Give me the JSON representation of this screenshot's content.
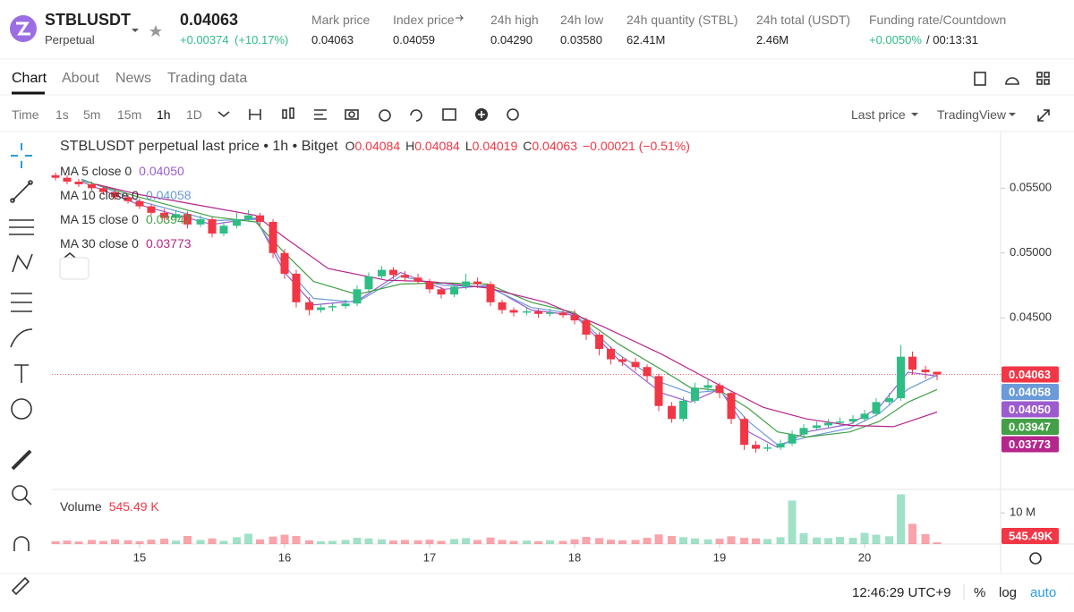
{
  "header": {
    "symbol": "STBLUSDT",
    "contract": "Perpetual",
    "price": "0.04063",
    "change": "+0.00374",
    "change_pct": "(+10.17%)",
    "stats": [
      {
        "label": "Mark price",
        "value": "0.04063"
      },
      {
        "label": "Index price",
        "value": "0.04059"
      },
      {
        "label": "24h high",
        "value": "0.04290"
      },
      {
        "label": "24h low",
        "value": "0.03580"
      },
      {
        "label": "24h quantity (STBL)",
        "value": "62.41M"
      },
      {
        "label": "24h total (USDT)",
        "value": "2.46M"
      }
    ],
    "funding": {
      "label": "Funding rate/Countdown",
      "rate": "+0.0050%",
      "countdown": "/ 00:13:31"
    }
  },
  "tabs": [
    "Chart",
    "About",
    "News",
    "Trading data"
  ],
  "toolbar": {
    "intervals": [
      "Time",
      "1s",
      "5m",
      "15m",
      "1h",
      "1D"
    ],
    "price_type": "Last price",
    "view": "TradingView"
  },
  "chart_data": {
    "type": "candlestick",
    "title": "STBLUSDT perpetual last price • 1h • Bitget",
    "ohlc_keys": [
      "O",
      "H",
      "L",
      "C"
    ],
    "change_label": "−0.00021 (−0.51%)",
    "up_color": "#2ebd85",
    "down_color": "#f23645",
    "x": [
      14.42,
      14.5,
      14.58,
      14.67,
      14.75,
      14.83,
      14.92,
      15,
      15.08,
      15.17,
      15.25,
      15.33,
      15.42,
      15.5,
      15.58,
      15.67,
      15.75,
      15.83,
      15.92,
      16,
      16.08,
      16.17,
      16.25,
      16.33,
      16.42,
      16.5,
      16.58,
      16.67,
      16.75,
      16.83,
      16.92,
      17,
      17.08,
      17.17,
      17.25,
      17.33,
      17.42,
      17.5,
      17.58,
      17.67,
      17.75,
      17.83,
      17.92,
      18,
      18.08,
      18.17,
      18.25,
      18.33,
      18.42,
      18.5,
      18.58,
      18.67,
      18.75,
      18.83,
      18.92,
      19,
      19.08,
      19.17,
      19.25,
      19.33,
      19.42,
      19.5,
      19.58,
      19.67,
      19.75,
      19.83,
      19.92,
      20,
      20.08,
      20.17,
      20.25,
      20.33,
      20.42,
      20.5
    ],
    "open": [
      0.056,
      0.0558,
      0.0555,
      0.0553,
      0.055,
      0.0547,
      0.0543,
      0.054,
      0.0536,
      0.0531,
      0.0527,
      0.053,
      0.0522,
      0.0526,
      0.0515,
      0.0521,
      0.0526,
      0.0529,
      0.0524,
      0.05,
      0.0484,
      0.0462,
      0.0456,
      0.0458,
      0.0459,
      0.0461,
      0.0472,
      0.0482,
      0.0487,
      0.0483,
      0.0481,
      0.0478,
      0.0472,
      0.0468,
      0.0474,
      0.0478,
      0.0476,
      0.0462,
      0.0456,
      0.0454,
      0.0455,
      0.0453,
      0.0454,
      0.0452,
      0.0448,
      0.0437,
      0.0426,
      0.0418,
      0.0416,
      0.0412,
      0.0405,
      0.0382,
      0.0372,
      0.0386,
      0.0396,
      0.0398,
      0.0392,
      0.0372,
      0.0352,
      0.0349,
      0.035,
      0.0353,
      0.036,
      0.0365,
      0.0367,
      0.0369,
      0.037,
      0.0372,
      0.0376,
      0.0385,
      0.0388,
      0.042,
      0.041,
      0.04084
    ],
    "high": [
      0.0562,
      0.056,
      0.0557,
      0.0555,
      0.0552,
      0.0549,
      0.0545,
      0.0542,
      0.0538,
      0.0534,
      0.0533,
      0.0532,
      0.0529,
      0.0528,
      0.0524,
      0.0531,
      0.0533,
      0.0531,
      0.0526,
      0.0503,
      0.0487,
      0.0466,
      0.0461,
      0.0462,
      0.0464,
      0.0475,
      0.0485,
      0.049,
      0.0489,
      0.0486,
      0.0484,
      0.048,
      0.0474,
      0.0477,
      0.0484,
      0.0481,
      0.0478,
      0.0464,
      0.0458,
      0.0458,
      0.0457,
      0.0457,
      0.0456,
      0.0456,
      0.045,
      0.0439,
      0.0428,
      0.042,
      0.0419,
      0.0414,
      0.0407,
      0.0385,
      0.0389,
      0.04,
      0.0403,
      0.04,
      0.0394,
      0.0374,
      0.0355,
      0.0353,
      0.0356,
      0.0363,
      0.0368,
      0.037,
      0.0372,
      0.0373,
      0.0375,
      0.0379,
      0.0388,
      0.0392,
      0.0429,
      0.0424,
      0.0413,
      0.04084
    ],
    "low": [
      0.0556,
      0.0553,
      0.0551,
      0.0548,
      0.0545,
      0.0541,
      0.0538,
      0.0534,
      0.0529,
      0.0524,
      0.0525,
      0.0519,
      0.052,
      0.0512,
      0.0513,
      0.0519,
      0.0524,
      0.0521,
      0.0496,
      0.048,
      0.0458,
      0.0452,
      0.0454,
      0.0455,
      0.0457,
      0.0459,
      0.047,
      0.048,
      0.048,
      0.0478,
      0.0476,
      0.0469,
      0.0465,
      0.0466,
      0.0472,
      0.0473,
      0.0459,
      0.0453,
      0.0451,
      0.0452,
      0.045,
      0.0451,
      0.045,
      0.0445,
      0.0433,
      0.0421,
      0.0414,
      0.0413,
      0.0409,
      0.0401,
      0.0378,
      0.0369,
      0.037,
      0.0384,
      0.0393,
      0.0388,
      0.0368,
      0.0348,
      0.0346,
      0.0347,
      0.0348,
      0.0351,
      0.0358,
      0.0363,
      0.0365,
      0.0367,
      0.0368,
      0.037,
      0.0374,
      0.0383,
      0.0386,
      0.0406,
      0.0403,
      0.04019
    ],
    "close": [
      0.0558,
      0.0555,
      0.0553,
      0.055,
      0.0547,
      0.0543,
      0.054,
      0.0536,
      0.0531,
      0.0527,
      0.053,
      0.0522,
      0.0526,
      0.0515,
      0.0521,
      0.0526,
      0.0529,
      0.0524,
      0.05,
      0.0484,
      0.0462,
      0.0456,
      0.0458,
      0.0459,
      0.0461,
      0.0472,
      0.0482,
      0.0487,
      0.0483,
      0.0481,
      0.0478,
      0.0472,
      0.0468,
      0.0474,
      0.0478,
      0.0476,
      0.0462,
      0.0456,
      0.0454,
      0.0455,
      0.0453,
      0.0454,
      0.0452,
      0.0448,
      0.0437,
      0.0426,
      0.0418,
      0.0416,
      0.0412,
      0.0405,
      0.0382,
      0.0372,
      0.0386,
      0.0396,
      0.0398,
      0.0392,
      0.0372,
      0.0352,
      0.0349,
      0.035,
      0.0353,
      0.036,
      0.0365,
      0.0367,
      0.0369,
      0.037,
      0.0372,
      0.0376,
      0.0385,
      0.0388,
      0.042,
      0.041,
      0.0408,
      0.04063
    ],
    "last_label": "0.04063",
    "series": [
      {
        "name": "MA 5 close 0",
        "color": "#9c5ccf",
        "last_label": "0.04050",
        "x": [
          14.6,
          15,
          15.5,
          15.8,
          16,
          16.2,
          16.5,
          16.8,
          17.1,
          17.4,
          17.7,
          18,
          18.3,
          18.6,
          18.8,
          19,
          19.2,
          19.4,
          19.6,
          19.9,
          20.1,
          20.3,
          20.5
        ],
        "values": [
          0.0555,
          0.0537,
          0.0522,
          0.0527,
          0.0485,
          0.046,
          0.0463,
          0.0485,
          0.0472,
          0.0475,
          0.0456,
          0.0452,
          0.0418,
          0.0392,
          0.0385,
          0.0395,
          0.0362,
          0.035,
          0.0362,
          0.0368,
          0.0381,
          0.0408,
          0.0405
        ]
      },
      {
        "name": "MA 10 close 0",
        "color": "#6a9bd8",
        "last_label": "0.04058",
        "x": [
          14.6,
          15,
          15.5,
          15.8,
          16,
          16.2,
          16.5,
          16.8,
          17.1,
          17.4,
          17.7,
          18,
          18.3,
          18.6,
          18.8,
          19,
          19.2,
          19.4,
          19.6,
          19.9,
          20.1,
          20.3,
          20.5
        ],
        "values": [
          0.0557,
          0.054,
          0.0525,
          0.0526,
          0.049,
          0.0465,
          0.0462,
          0.0482,
          0.0475,
          0.0474,
          0.0458,
          0.0453,
          0.0422,
          0.04,
          0.0392,
          0.0394,
          0.037,
          0.0352,
          0.0358,
          0.0365,
          0.0376,
          0.0395,
          0.04058
        ]
      },
      {
        "name": "MA 15 close 0",
        "color": "#43a047",
        "last_label": "0.03947",
        "x": [
          14.6,
          15,
          15.5,
          15.8,
          16,
          16.2,
          16.5,
          16.8,
          17.1,
          17.4,
          17.7,
          18,
          18.3,
          18.6,
          18.8,
          19,
          19.2,
          19.4,
          19.6,
          19.9,
          20.1,
          20.3,
          20.5
        ],
        "values": [
          0.0556,
          0.0543,
          0.0528,
          0.0524,
          0.05,
          0.0478,
          0.0468,
          0.0476,
          0.0477,
          0.0476,
          0.0462,
          0.0454,
          0.043,
          0.041,
          0.0396,
          0.0394,
          0.038,
          0.0362,
          0.0358,
          0.0362,
          0.037,
          0.0385,
          0.03947
        ]
      },
      {
        "name": "MA 30 close 0",
        "color": "#b5268c",
        "last_label": "0.03773",
        "x": [
          14.7,
          15,
          15.5,
          15.8,
          16,
          16.3,
          16.7,
          17,
          17.4,
          17.8,
          18.2,
          18.6,
          19,
          19.3,
          19.6,
          19.9,
          20.2,
          20.5
        ],
        "values": [
          0.0553,
          0.0545,
          0.0535,
          0.0529,
          0.0512,
          0.0488,
          0.0479,
          0.0478,
          0.0473,
          0.0462,
          0.0443,
          0.0422,
          0.0398,
          0.0381,
          0.0372,
          0.0367,
          0.0366,
          0.03773
        ]
      }
    ],
    "xlim": [
      14.395,
      20.938
    ],
    "xticks": [
      15,
      16,
      17,
      18,
      19,
      20
    ],
    "ylim": [
      0.0319,
      0.0593
    ],
    "yticks": [
      {
        "value": 0.045,
        "label": "0.04500"
      },
      {
        "value": 0.05,
        "label": "0.05000"
      },
      {
        "value": 0.055,
        "label": "0.05500"
      }
    ],
    "grid": false,
    "volume": {
      "name": "Volume",
      "last_label": "545.49 K",
      "axis_label": "545.49K",
      "ylim": [
        0,
        17000000
      ],
      "yticks": [
        {
          "value": 10000000,
          "label": "10 M"
        }
      ],
      "values": [
        900000,
        1100000,
        800000,
        1300000,
        1000000,
        1500000,
        1200000,
        900000,
        1400000,
        1700000,
        1100000,
        2600000,
        1300000,
        1800000,
        1000000,
        2200000,
        3300000,
        1500000,
        2400000,
        3000000,
        2600000,
        1200000,
        900000,
        1000000,
        1300000,
        2000000,
        1800000,
        1500000,
        1100000,
        1300000,
        1200000,
        1400000,
        1000000,
        1600000,
        1900000,
        1300000,
        2100000,
        1300000,
        1000000,
        1100000,
        900000,
        1200000,
        1000000,
        1500000,
        2300000,
        1900000,
        1400000,
        1200000,
        1300000,
        2000000,
        3100000,
        2600000,
        2200000,
        1800000,
        1500000,
        1700000,
        2500000,
        2000000,
        1800000,
        1600000,
        2200000,
        14000000,
        3500000,
        2100000,
        1900000,
        2300000,
        2000000,
        3600000,
        3000000,
        2500000,
        16000000,
        6500000,
        3200000,
        545490
      ]
    }
  },
  "footer": {
    "time": "12:46:29 UTC+9",
    "options": [
      "%",
      "log",
      "auto"
    ]
  }
}
